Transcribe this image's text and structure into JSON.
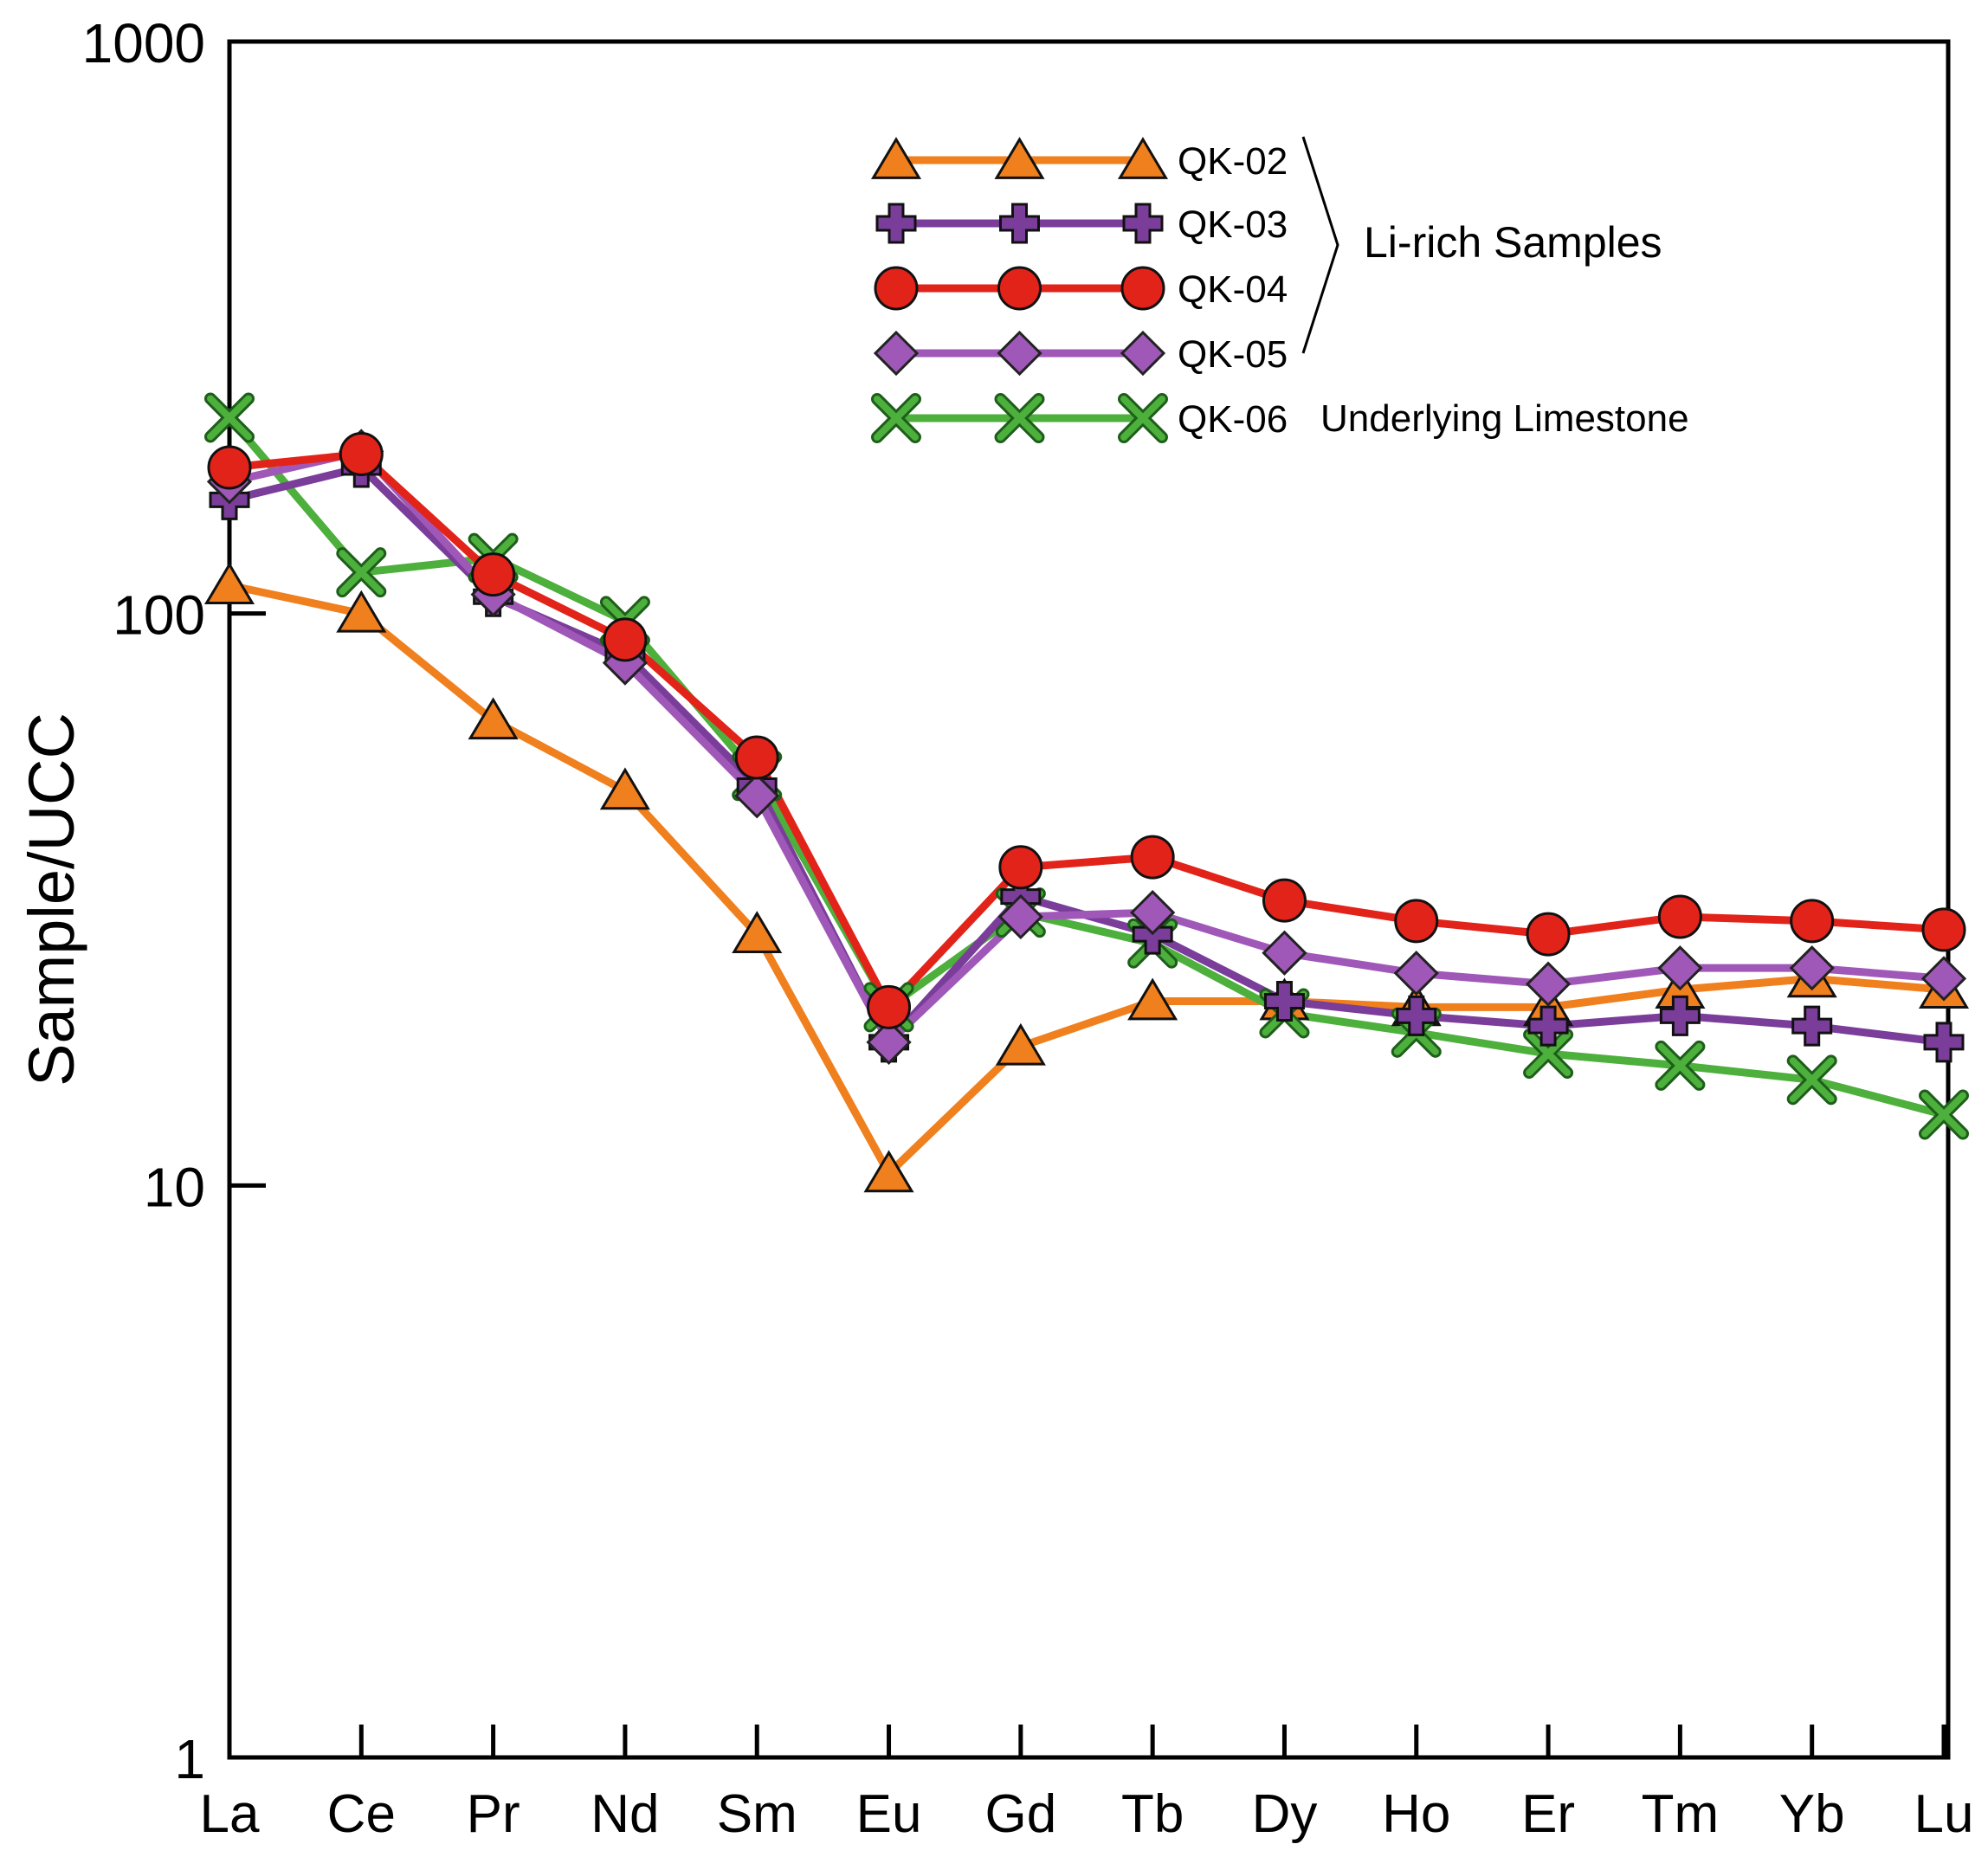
{
  "chart_data": {
    "type": "line",
    "ylabel": "Sample/UCC",
    "xlabel": "",
    "yscale": "log",
    "ylim": [
      1,
      1000
    ],
    "yticks": [
      {
        "value": 1000,
        "label": "1000"
      },
      {
        "value": 100,
        "label": "100"
      },
      {
        "value": 10,
        "label": "10"
      },
      {
        "value": 1,
        "label": "1"
      }
    ],
    "categories": [
      "La",
      "Ce",
      "Pr",
      "Nd",
      "Sm",
      "Eu",
      "Gd",
      "Tb",
      "Dy",
      "Ho",
      "Er",
      "Tm",
      "Yb",
      "Lu"
    ],
    "series": [
      {
        "name": "QK-02",
        "color": "#F07F1E",
        "marker": "triangle",
        "values": [
          112,
          100,
          65,
          49,
          27.5,
          10.5,
          17.5,
          21,
          21,
          20.5,
          20.5,
          22,
          23,
          22
        ]
      },
      {
        "name": "QK-03",
        "color": "#7A3D9A",
        "marker": "plus",
        "values": [
          158,
          180,
          107,
          85,
          50,
          17.8,
          32,
          27.5,
          21,
          19.8,
          19,
          19.8,
          19,
          17.8
        ]
      },
      {
        "name": "QK-04",
        "color": "#E2231A",
        "marker": "circle",
        "values": [
          180,
          190,
          117,
          90,
          56,
          20.5,
          36,
          37.5,
          31.5,
          29,
          27.5,
          29.5,
          29,
          28
        ]
      },
      {
        "name": "QK-05",
        "color": "#A058B8",
        "marker": "diamond",
        "values": [
          170,
          192,
          108,
          82,
          48,
          17.8,
          29.5,
          30,
          25.5,
          23.5,
          22.5,
          24,
          24,
          23
        ]
      },
      {
        "name": "QK-06",
        "color": "#4DAF3C",
        "marker": "x",
        "values": [
          220,
          118,
          125,
          97,
          52,
          20.5,
          30,
          26.5,
          20,
          18.5,
          17,
          16.2,
          15.3,
          13.3
        ]
      }
    ],
    "legend": {
      "position": "top-right",
      "group_label": "Li-rich Samples",
      "note": "Underlying Limestone"
    },
    "grid": false
  }
}
